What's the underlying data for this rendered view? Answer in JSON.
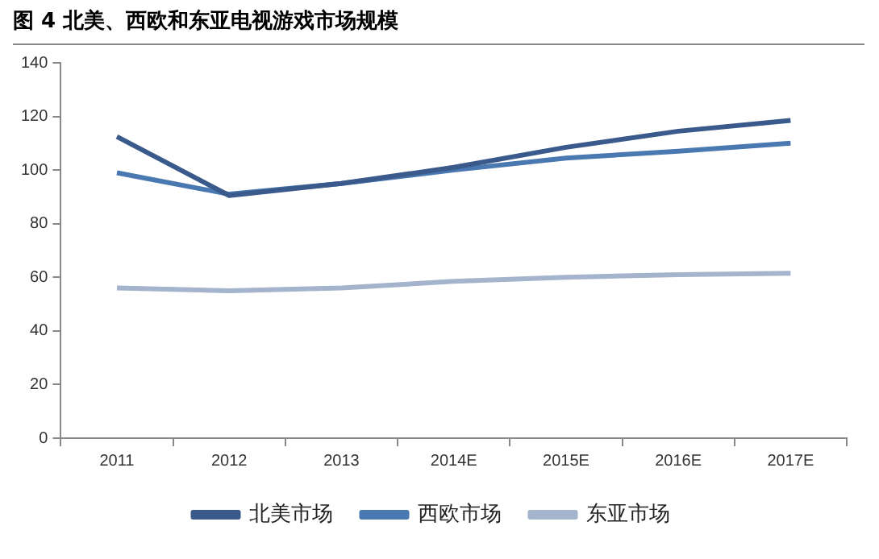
{
  "chart_data": {
    "type": "line",
    "title": "图 4 北美、西欧和东亚电视游戏市场规模",
    "categories": [
      "2011",
      "2012",
      "2013",
      "2014E",
      "2015E",
      "2016E",
      "2017E"
    ],
    "series": [
      {
        "name": "北美市场",
        "color": "#3a5a8c",
        "values": [
          112.5,
          90.5,
          95,
          101,
          108.5,
          114.5,
          118.5
        ]
      },
      {
        "name": "西欧市场",
        "color": "#4a78b0",
        "values": [
          99,
          91,
          95,
          100,
          104.5,
          107,
          110
        ]
      },
      {
        "name": "东亚市场",
        "color": "#a3b4cc",
        "values": [
          56,
          55,
          56,
          58.5,
          60,
          61,
          61.5
        ]
      }
    ],
    "ylim": [
      0,
      140
    ],
    "yticks": [
      0,
      20,
      40,
      60,
      80,
      100,
      120,
      140
    ],
    "grid": false,
    "legend": "bottom",
    "marker": "none",
    "line_style": "solid"
  }
}
